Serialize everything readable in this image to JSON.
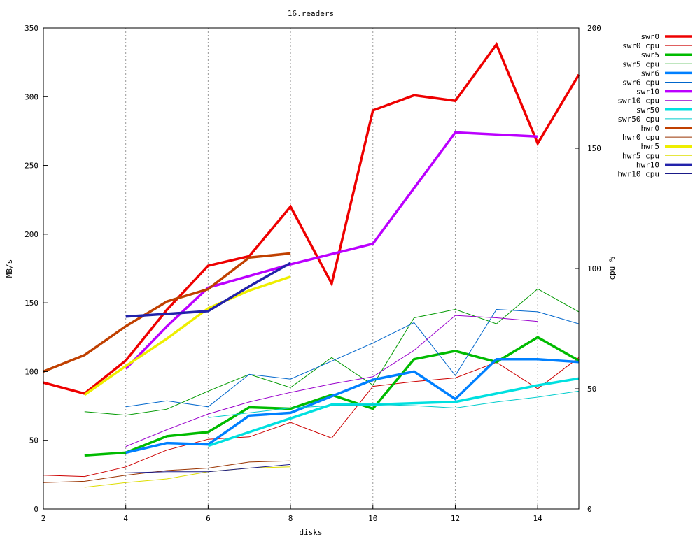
{
  "chart_data": {
    "type": "line",
    "title": "16.readers",
    "xlabel": "disks",
    "ylabel": "MB/s",
    "y2label": "cpu %",
    "xlim": [
      2,
      15
    ],
    "ylim": [
      0,
      350
    ],
    "y2lim": [
      0,
      200
    ],
    "xticks": [
      "2",
      "4",
      "6",
      "8",
      "10",
      "12",
      "14"
    ],
    "yticks": [
      "0",
      "50",
      "100",
      "150",
      "200",
      "250",
      "300",
      "350"
    ],
    "y2ticks": [
      "0",
      "50",
      "100",
      "150",
      "200"
    ],
    "grid": "vertical dotted at x ticks",
    "legend_position": "right, outside plot",
    "series": [
      {
        "name": "swr0",
        "axis": "y",
        "weight": "thick",
        "color": "#ee0000",
        "x": [
          2,
          3,
          4,
          5,
          6,
          7,
          8,
          9,
          10,
          11,
          12,
          13,
          14,
          15
        ],
        "y": [
          92,
          84,
          108,
          145,
          177,
          184,
          220,
          164,
          290,
          301,
          297,
          338,
          266,
          316
        ]
      },
      {
        "name": "swr0 cpu",
        "axis": "y2",
        "weight": "thin",
        "color": "#cc0000",
        "x": [
          2,
          3,
          4,
          5,
          6,
          7,
          8,
          9,
          10,
          11,
          12,
          13,
          14,
          15
        ],
        "y": [
          14,
          13.5,
          17.5,
          24.5,
          29,
          30,
          36,
          29.5,
          51,
          53,
          54.5,
          61,
          50,
          63
        ]
      },
      {
        "name": "swr5",
        "axis": "y",
        "weight": "thick",
        "color": "#00bb00",
        "x": [
          3,
          4,
          5,
          6,
          7,
          8,
          9,
          10,
          11,
          12,
          13,
          14,
          15
        ],
        "y": [
          39,
          41,
          53,
          56,
          74,
          73,
          83,
          73,
          109,
          115,
          107,
          125,
          108
        ]
      },
      {
        "name": "swr5 cpu",
        "axis": "y2",
        "weight": "thin",
        "color": "#009900",
        "x": [
          3,
          4,
          5,
          6,
          7,
          8,
          9,
          10,
          11,
          12,
          13,
          14,
          15
        ],
        "y": [
          40.5,
          39,
          41.5,
          49,
          56,
          50.5,
          63,
          51.5,
          79.5,
          83,
          77,
          91.5,
          82
        ]
      },
      {
        "name": "swr6",
        "axis": "y",
        "weight": "thick",
        "color": "#0080ff",
        "x": [
          4,
          5,
          6,
          7,
          8,
          9,
          10,
          11,
          12,
          13,
          14,
          15
        ],
        "y": [
          41,
          48,
          47,
          68,
          70,
          82,
          94,
          100,
          80,
          109,
          109,
          107
        ]
      },
      {
        "name": "swr6 cpu",
        "axis": "y2",
        "weight": "thin",
        "color": "#0066cc",
        "x": [
          4,
          5,
          6,
          7,
          8,
          9,
          10,
          11,
          12,
          13,
          14,
          15
        ],
        "y": [
          42.5,
          45,
          42.5,
          56,
          54,
          61.5,
          69,
          77.5,
          55.5,
          83,
          82,
          77
        ]
      },
      {
        "name": "swr10",
        "axis": "y",
        "weight": "thick",
        "color": "#bb00ff",
        "x": [
          4,
          5,
          6,
          8,
          10,
          12,
          14
        ],
        "y": [
          102,
          133,
          161,
          178,
          193,
          274,
          271
        ]
      },
      {
        "name": "swr10 cpu",
        "axis": "y2",
        "weight": "thin",
        "color": "#9900cc",
        "x": [
          4,
          5,
          6,
          7,
          8,
          9,
          10,
          11,
          12,
          13,
          14
        ],
        "y": [
          26,
          33,
          39.5,
          44.5,
          48.5,
          52,
          55,
          66,
          80.5,
          79.5,
          78
        ]
      },
      {
        "name": "swr50",
        "axis": "y",
        "weight": "thick",
        "color": "#00e0e0",
        "x": [
          6,
          7,
          8,
          9,
          10,
          11,
          12,
          13,
          14,
          15
        ],
        "y": [
          46,
          56,
          66,
          76,
          76,
          77,
          78,
          84,
          90,
          95
        ]
      },
      {
        "name": "swr50 cpu",
        "axis": "y2",
        "weight": "thin",
        "color": "#00cccc",
        "x": [
          6,
          7,
          8,
          9,
          10,
          11,
          12,
          13,
          14,
          15
        ],
        "y": [
          38,
          40,
          42,
          43,
          43.5,
          43,
          42,
          44.5,
          46.5,
          49
        ]
      },
      {
        "name": "hwr0",
        "axis": "y",
        "weight": "thick",
        "color": "#c04000",
        "x": [
          2,
          3,
          4,
          5,
          6,
          7,
          8
        ],
        "y": [
          100,
          112,
          133,
          151,
          160,
          183,
          186
        ]
      },
      {
        "name": "hwr0 cpu",
        "axis": "y2",
        "weight": "thin",
        "color": "#993300",
        "x": [
          2,
          3,
          4,
          5,
          6,
          7,
          8
        ],
        "y": [
          11,
          11.5,
          14,
          16,
          17,
          19.5,
          20
        ]
      },
      {
        "name": "hwr5",
        "axis": "y",
        "weight": "thick",
        "color": "#eeee00",
        "x": [
          3,
          4,
          5,
          6,
          7,
          8
        ],
        "y": [
          83,
          104,
          124,
          146,
          159,
          169
        ]
      },
      {
        "name": "hwr5 cpu",
        "axis": "y2",
        "weight": "thin",
        "color": "#dddd00",
        "x": [
          3,
          4,
          5,
          6,
          7,
          8
        ],
        "y": [
          9,
          11,
          12.5,
          15.5,
          17,
          17.5
        ]
      },
      {
        "name": "hwr10",
        "axis": "y",
        "weight": "thick",
        "color": "#2222aa",
        "x": [
          4,
          5,
          6,
          7,
          8
        ],
        "y": [
          140,
          142,
          144,
          162,
          179
        ]
      },
      {
        "name": "hwr10 cpu",
        "axis": "y2",
        "weight": "thin",
        "color": "#1a1a88",
        "x": [
          4,
          5,
          6,
          7,
          8
        ],
        "y": [
          15,
          15.5,
          15.5,
          17,
          18.5
        ]
      }
    ]
  }
}
